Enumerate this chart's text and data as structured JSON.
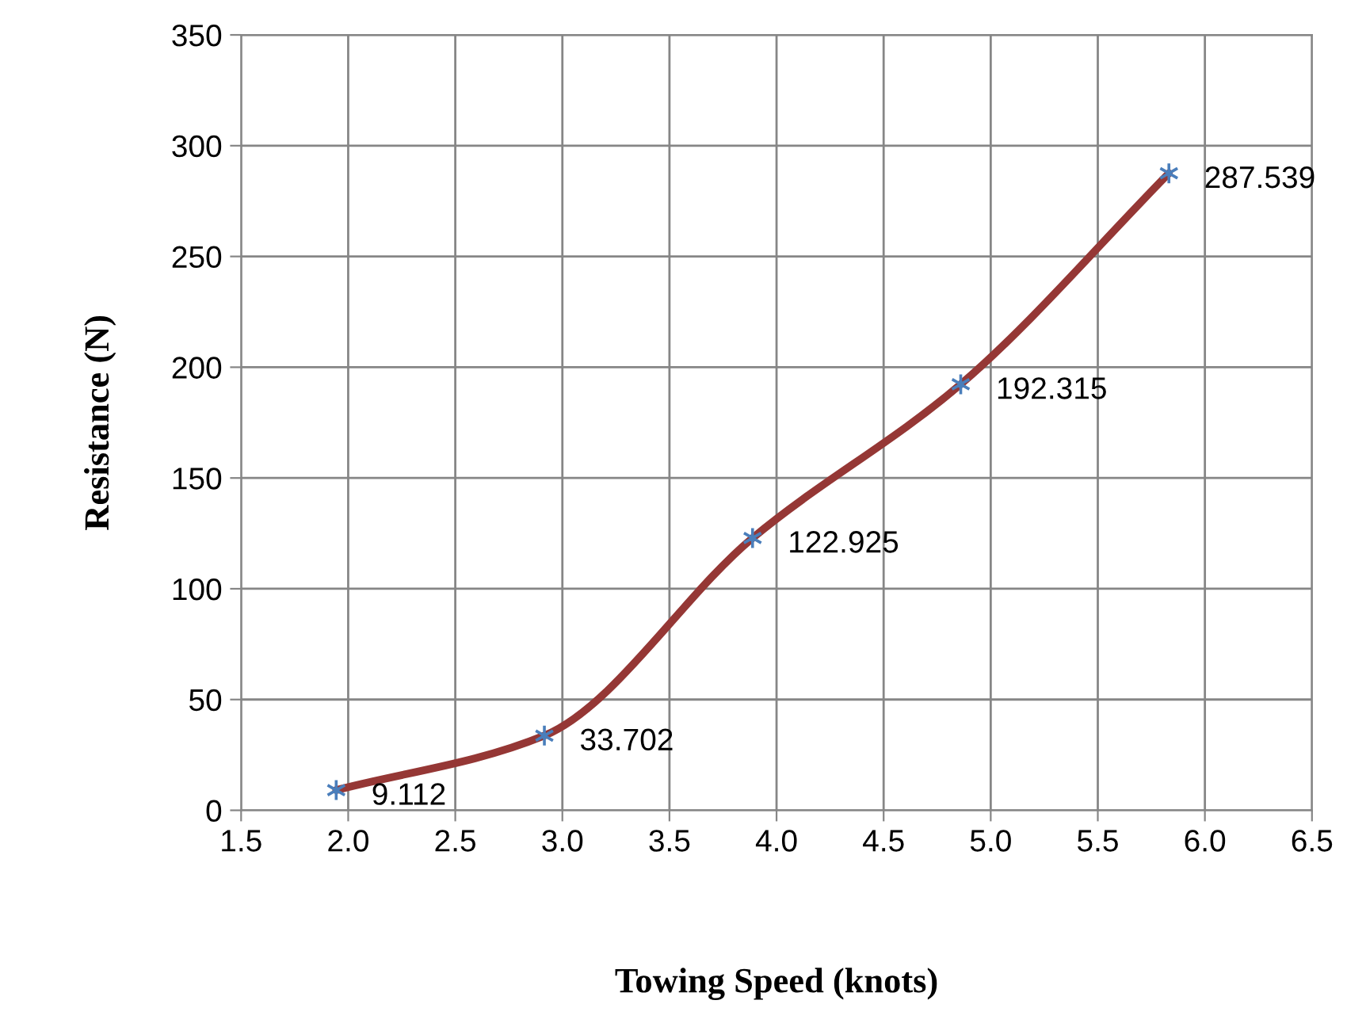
{
  "chart_data": {
    "type": "line",
    "xlabel": "Towing Speed (knots)",
    "ylabel": "Resistance (N)",
    "x": [
      1.944,
      2.916,
      3.888,
      4.86,
      5.832
    ],
    "series": [
      {
        "color": "#953735",
        "values": [
          9.112,
          33.702,
          122.925,
          192.315,
          287.539
        ],
        "colors": [
          "#4a7ebb",
          "#4a7ebb",
          "#4a7ebb",
          "#4a7ebb",
          "#4a7ebb"
        ]
      }
    ],
    "xlim": [
      1.5,
      6.5
    ],
    "xticks": [
      {
        "value": 1.5,
        "label": "1.5"
      },
      {
        "value": 2.0,
        "label": "2.0"
      },
      {
        "value": 2.5,
        "label": "2.5"
      },
      {
        "value": 3.0,
        "label": "3.0"
      },
      {
        "value": 3.5,
        "label": "3.5"
      },
      {
        "value": 4.0,
        "label": "4.0"
      },
      {
        "value": 4.5,
        "label": "4.5"
      },
      {
        "value": 5.0,
        "label": "5.0"
      },
      {
        "value": 5.5,
        "label": "5.5"
      },
      {
        "value": 6.0,
        "label": "6.0"
      },
      {
        "value": 6.5,
        "label": "6.5"
      }
    ],
    "ylim": [
      0,
      350
    ],
    "yticks": [
      0,
      50,
      100,
      150,
      200,
      250,
      300,
      350
    ],
    "grid": true,
    "marker": "cross",
    "line_style": "solid",
    "data_labels": true
  }
}
